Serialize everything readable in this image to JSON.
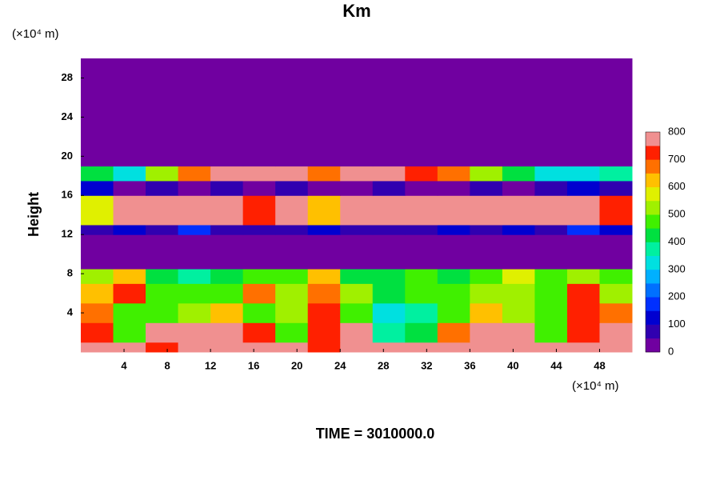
{
  "chart_data": {
    "type": "heatmap",
    "title": "Km",
    "ylabel": "Height",
    "y_unit": "(×10⁴ m)",
    "x_unit": "(×10⁴ m)",
    "footer": "TIME = 3010000.0",
    "xlim": [
      0,
      51
    ],
    "ylim": [
      0,
      30
    ],
    "xticks": [
      4,
      8,
      12,
      16,
      20,
      24,
      28,
      32,
      36,
      40,
      44,
      48
    ],
    "yticks": [
      4,
      8,
      12,
      16,
      20,
      24,
      28
    ],
    "x_edges": [
      0,
      3,
      6,
      9,
      12,
      15,
      18,
      21,
      24,
      27,
      30,
      33,
      36,
      39,
      42,
      45,
      48,
      51
    ],
    "y_edges": [
      0,
      1,
      3,
      5,
      7,
      8.5,
      12,
      13,
      16,
      17.5,
      19,
      30
    ],
    "z": [
      [
        800,
        800,
        700,
        800,
        800,
        800,
        800,
        700,
        800,
        750,
        800,
        800,
        800,
        750,
        800,
        800,
        800
      ],
      [
        700,
        450,
        750,
        800,
        800,
        700,
        450,
        700,
        750,
        350,
        400,
        650,
        750,
        800,
        450,
        700,
        800
      ],
      [
        650,
        450,
        450,
        500,
        600,
        450,
        500,
        700,
        450,
        300,
        350,
        450,
        600,
        500,
        450,
        700,
        650
      ],
      [
        600,
        700,
        450,
        450,
        450,
        650,
        500,
        650,
        500,
        400,
        450,
        450,
        500,
        500,
        450,
        700,
        500
      ],
      [
        500,
        600,
        400,
        350,
        400,
        450,
        450,
        600,
        400,
        400,
        450,
        400,
        450,
        550,
        450,
        500,
        450
      ],
      [
        0,
        0,
        0,
        0,
        0,
        0,
        0,
        0,
        0,
        0,
        0,
        0,
        0,
        0,
        0,
        0,
        0
      ],
      [
        50,
        100,
        50,
        150,
        50,
        50,
        50,
        100,
        50,
        50,
        50,
        100,
        50,
        100,
        50,
        150,
        100
      ],
      [
        550,
        800,
        800,
        800,
        750,
        700,
        800,
        600,
        750,
        800,
        750,
        800,
        800,
        800,
        800,
        800,
        700
      ],
      [
        100,
        0,
        50,
        0,
        50,
        0,
        50,
        0,
        0,
        50,
        0,
        0,
        50,
        0,
        50,
        100,
        50
      ],
      [
        400,
        300,
        500,
        650,
        800,
        800,
        800,
        650,
        750,
        800,
        700,
        650,
        500,
        400,
        300,
        300,
        350
      ],
      [
        0,
        0,
        0,
        0,
        0,
        0,
        0,
        0,
        0,
        0,
        0,
        0,
        0,
        0,
        0,
        0,
        0
      ]
    ],
    "clim": [
      0,
      800
    ],
    "colorbar_ticks": [
      0,
      100,
      200,
      300,
      400,
      500,
      600,
      700,
      800
    ],
    "colors": [
      "#7000a0",
      "#3000b0",
      "#0000d0",
      "#0030ff",
      "#0070ff",
      "#00b0ff",
      "#00e0e0",
      "#00f0a0",
      "#00e040",
      "#40f000",
      "#a0f000",
      "#e0f000",
      "#ffc000",
      "#ff7000",
      "#ff2000",
      "#f09090"
    ]
  }
}
